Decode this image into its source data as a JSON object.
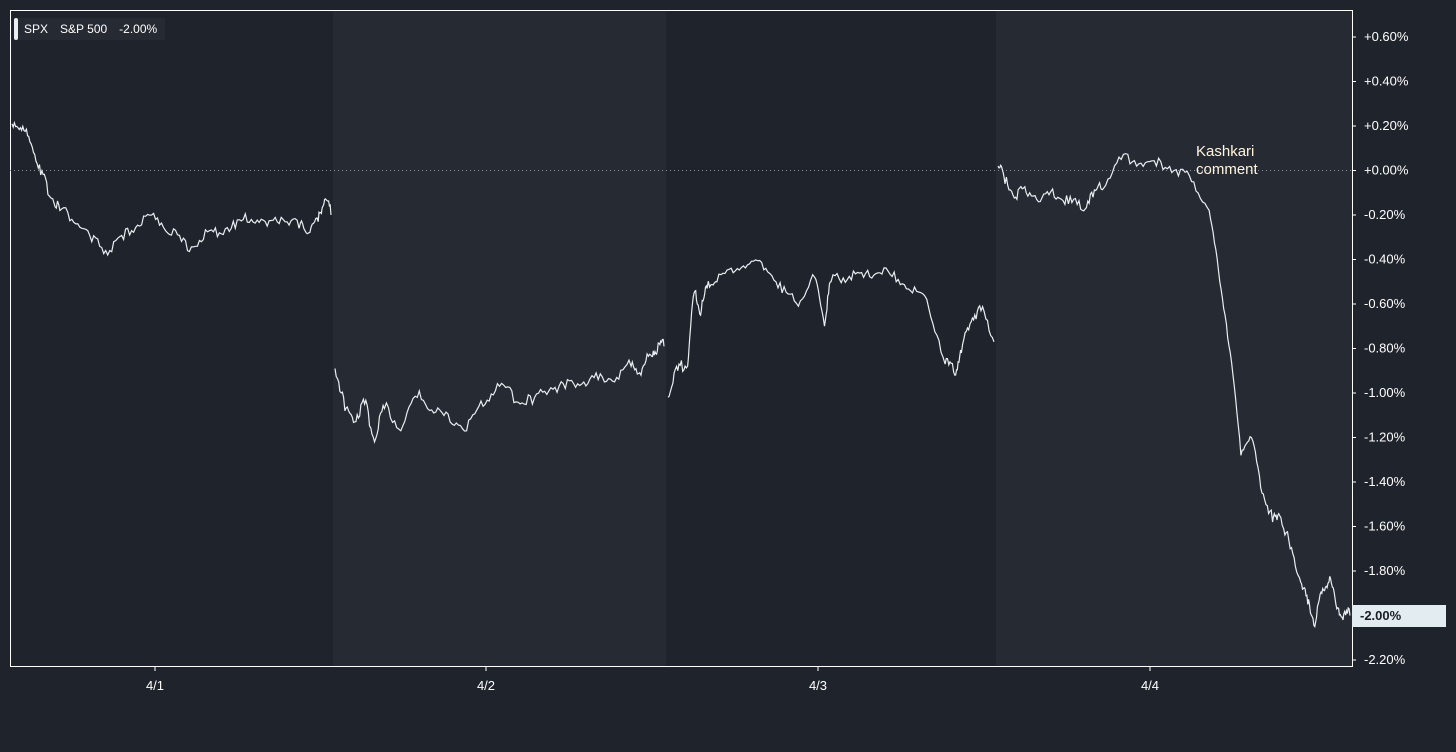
{
  "legend": {
    "symbol": "SPX",
    "name": "S&P 500",
    "change": "-2.00%"
  },
  "annotation": {
    "line1": "Kashkari",
    "line2": "comment"
  },
  "last_value_tag": "-2.00%",
  "colors": {
    "background": "#1f232b",
    "line": "#e8eef2",
    "axis": "#ffffff",
    "day_shade": "#262a33"
  },
  "chart_data": {
    "type": "line",
    "title": "",
    "xlabel": "",
    "ylabel": "",
    "ylim": [
      -2.2,
      0.6
    ],
    "y_ticks": [
      "+0.60%",
      "+0.40%",
      "+0.20%",
      "+0.00%",
      "-0.20%",
      "-0.40%",
      "-0.60%",
      "-0.80%",
      "-1.00%",
      "-1.20%",
      "-1.40%",
      "-1.60%",
      "-1.80%",
      "-2.00%",
      "-2.20%"
    ],
    "x_ticks": [
      "4/1",
      "4/2",
      "4/3",
      "4/4"
    ],
    "zero_line": "dotted",
    "series": [
      {
        "sessions": [
          {
            "day": "4/1",
            "x": [
              0.0,
              0.03,
              0.06,
              0.09,
              0.12,
              0.15,
              0.2,
              0.25,
              0.3,
              0.35,
              0.4,
              0.45,
              0.5,
              0.55,
              0.6,
              0.65,
              0.7,
              0.75,
              0.8,
              0.85,
              0.9,
              0.93,
              0.96,
              0.98,
              1.0
            ],
            "y": [
              0.21,
              0.18,
              0.12,
              -0.02,
              -0.12,
              -0.18,
              -0.24,
              -0.32,
              -0.38,
              -0.31,
              -0.25,
              -0.22,
              -0.29,
              -0.36,
              -0.31,
              -0.28,
              -0.26,
              -0.22,
              -0.25,
              -0.22,
              -0.26,
              -0.28,
              -0.23,
              -0.13,
              -0.2
            ]
          },
          {
            "day": "4/2",
            "x": [
              0.0,
              0.03,
              0.06,
              0.09,
              0.12,
              0.15,
              0.2,
              0.25,
              0.3,
              0.35,
              0.4,
              0.45,
              0.5,
              0.55,
              0.6,
              0.65,
              0.7,
              0.75,
              0.8,
              0.85,
              0.9,
              0.93,
              0.96,
              0.98,
              1.0
            ],
            "y": [
              -0.89,
              -1.08,
              -1.13,
              -1.05,
              -1.22,
              -1.07,
              -1.17,
              -1.02,
              -1.09,
              -1.13,
              -1.17,
              -1.06,
              -0.97,
              -1.04,
              -1.05,
              -0.99,
              -0.98,
              -0.96,
              -0.94,
              -0.95,
              -0.88,
              -0.92,
              -0.83,
              -0.81,
              -0.79
            ]
          },
          {
            "day": "4/3",
            "x": [
              0.0,
              0.03,
              0.06,
              0.08,
              0.1,
              0.12,
              0.15,
              0.2,
              0.25,
              0.3,
              0.35,
              0.4,
              0.45,
              0.48,
              0.5,
              0.55,
              0.6,
              0.65,
              0.7,
              0.75,
              0.8,
              0.85,
              0.88,
              0.9,
              0.93,
              0.96,
              1.0
            ],
            "y": [
              -1.02,
              -0.9,
              -0.88,
              -0.55,
              -0.65,
              -0.53,
              -0.5,
              -0.46,
              -0.42,
              -0.44,
              -0.55,
              -0.61,
              -0.48,
              -0.7,
              -0.5,
              -0.49,
              -0.48,
              -0.46,
              -0.5,
              -0.55,
              -0.62,
              -0.87,
              -0.92,
              -0.82,
              -0.68,
              -0.63,
              -0.77
            ]
          },
          {
            "day": "4/4",
            "x": [
              0.0,
              0.02,
              0.05,
              0.08,
              0.12,
              0.16,
              0.2,
              0.24,
              0.27,
              0.3,
              0.35,
              0.4,
              0.45,
              0.5,
              0.55,
              0.6,
              0.63,
              0.66,
              0.69,
              0.72,
              0.75,
              0.78,
              0.8,
              0.83,
              0.86,
              0.88,
              0.9,
              0.92,
              0.94,
              0.96,
              0.98,
              1.0
            ],
            "y": [
              0.02,
              -0.06,
              -0.12,
              -0.1,
              -0.14,
              -0.12,
              -0.15,
              -0.18,
              -0.12,
              -0.08,
              0.05,
              0.03,
              0.02,
              0.0,
              -0.05,
              -0.18,
              -0.5,
              -0.82,
              -1.28,
              -1.2,
              -1.45,
              -1.58,
              -1.55,
              -1.7,
              -1.85,
              -1.95,
              -2.05,
              -1.9,
              -1.85,
              -1.95,
              -2.02,
              -2.0
            ]
          }
        ]
      }
    ]
  }
}
